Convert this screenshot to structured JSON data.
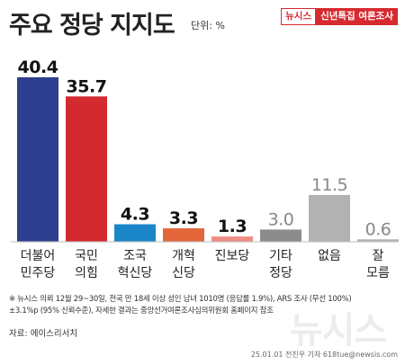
{
  "header": {
    "title": "주요 정당 지지도",
    "unit": "단위: %",
    "brand": "뉴시스",
    "series_label": "신년특집 여론조사"
  },
  "chart_data": {
    "type": "bar",
    "title": "주요 정당 지지도",
    "unit": "%",
    "categories": [
      [
        "더불어",
        "민주당"
      ],
      [
        "국민",
        "의힘"
      ],
      [
        "조국",
        "혁신당"
      ],
      [
        "개혁",
        "신당"
      ],
      [
        "진보당"
      ],
      [
        "기타",
        "정당"
      ],
      [
        "없음"
      ],
      [
        "잘",
        "모름"
      ]
    ],
    "values": [
      40.4,
      35.7,
      4.3,
      3.3,
      1.3,
      3.0,
      11.5,
      0.6
    ],
    "value_labels": [
      "40.4",
      "35.7",
      "4.3",
      "3.3",
      "1.3",
      "3.0",
      "11.5",
      "0.6"
    ],
    "colors": [
      "#2e3f8f",
      "#d32a30",
      "#1a86c8",
      "#e3653a",
      "#ef8d84",
      "#8c8c8c",
      "#b2b2b2",
      "#b2b2b2"
    ],
    "label_colors": [
      "#111111",
      "#111111",
      "#111111",
      "#111111",
      "#111111",
      "#888888",
      "#888888",
      "#888888"
    ],
    "label_styles": [
      "bold",
      "bold",
      "bold",
      "bold",
      "bold",
      "normal",
      "normal",
      "normal"
    ],
    "ylim": [
      0,
      40.4
    ],
    "grid": false,
    "legend": "none"
  },
  "footnote": {
    "lines": [
      "※ 뉴시스 의뢰 12월 29~30일, 전국 만 18세 이상 성인 남녀 1010명 (응답률 1.9%), ARS 조사 (무선 100%)",
      "±3.1%p (95% 신뢰수준), 자세한 결과는 중앙선거여론조사심의위원회 홈페이지 참조"
    ]
  },
  "source": "자료: 에이스리서치",
  "watermark": "뉴시스",
  "credit": "25.01.01  전진우 기자  618tue@newsis.com"
}
